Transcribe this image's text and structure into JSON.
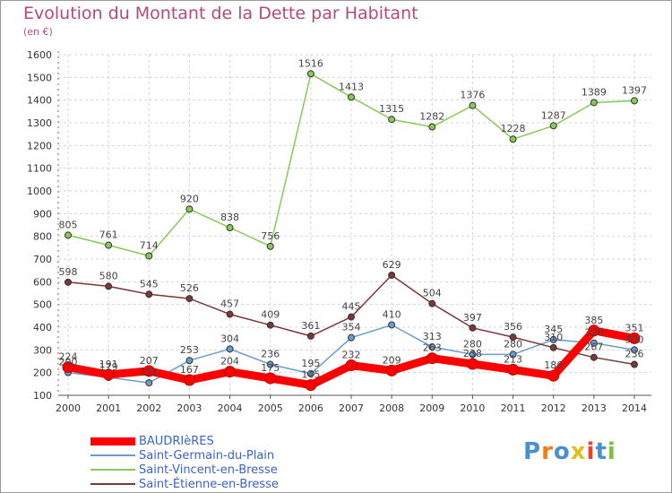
{
  "header": {
    "title": "Evolution du Montant de la Dette par Habitant",
    "subtitle": "(en €)"
  },
  "logo": {
    "text": "Proxiti",
    "letter_colors": [
      "#4a8fd4",
      "#f07d1a",
      "#4a8fd4",
      "#e0c020",
      "#e8412c",
      "#4a8fd4",
      "#7cc043"
    ]
  },
  "chart_data": {
    "type": "line",
    "title": "Evolution du Montant de la Dette par Habitant",
    "subtitle": "(en €)",
    "xlabel": "",
    "ylabel": "",
    "x": [
      "2000",
      "2001",
      "2002",
      "2003",
      "2004",
      "2005",
      "2006",
      "2007",
      "2008",
      "2009",
      "2010",
      "2011",
      "2012",
      "2013",
      "2014"
    ],
    "ylim": [
      100,
      1600
    ],
    "yticks": [
      "100",
      "200",
      "300",
      "400",
      "500",
      "600",
      "700",
      "800",
      "900",
      "1000",
      "1100",
      "1200",
      "1300",
      "1400",
      "1500",
      "1600"
    ],
    "grid": true,
    "legend_position": "bottom-left",
    "series": [
      {
        "name": "BAUDRIèRES",
        "color": "#ff0000",
        "emphasis": true,
        "values": [
          224,
          191,
          207,
          167,
          204,
          175,
          145,
          232,
          209,
          263,
          238,
          213,
          186,
          385,
          351
        ],
        "labels": [
          "224",
          "191",
          "207",
          "167",
          "204",
          "175",
          "145",
          "232",
          "209",
          "263",
          "238",
          "213",
          "186",
          "385",
          "351"
        ]
      },
      {
        "name": "Saint-Germain-du-Plain",
        "color": "#6a9ccc",
        "values": [
          200,
          179,
          155,
          253,
          304,
          236,
          195,
          354,
          410,
          313,
          280,
          280,
          345,
          330,
          300
        ],
        "labels": [
          "200",
          "179",
          "155",
          "253",
          "304",
          "236",
          "195",
          "354",
          "410",
          "313",
          "280",
          "280",
          "345",
          "330",
          "300"
        ]
      },
      {
        "name": "Saint-Vincent-en-Bresse",
        "color": "#88c95a",
        "values": [
          805,
          761,
          714,
          920,
          838,
          756,
          1516,
          1413,
          1315,
          1282,
          1376,
          1228,
          1287,
          1389,
          1397
        ],
        "labels": [
          "805",
          "761",
          "714",
          "920",
          "838",
          "756",
          "1516",
          "1413",
          "1315",
          "1282",
          "1376",
          "1228",
          "1287",
          "1389",
          "1397"
        ]
      },
      {
        "name": "Saint-Étienne-en-Bresse",
        "color": "#7a3838",
        "values": [
          598,
          580,
          545,
          526,
          457,
          409,
          361,
          445,
          629,
          504,
          397,
          356,
          310,
          267,
          236
        ],
        "labels": [
          "598",
          "580",
          "545",
          "526",
          "457",
          "409",
          "361",
          "445",
          "629",
          "504",
          "397",
          "356",
          "310",
          "267",
          "236"
        ]
      }
    ]
  }
}
